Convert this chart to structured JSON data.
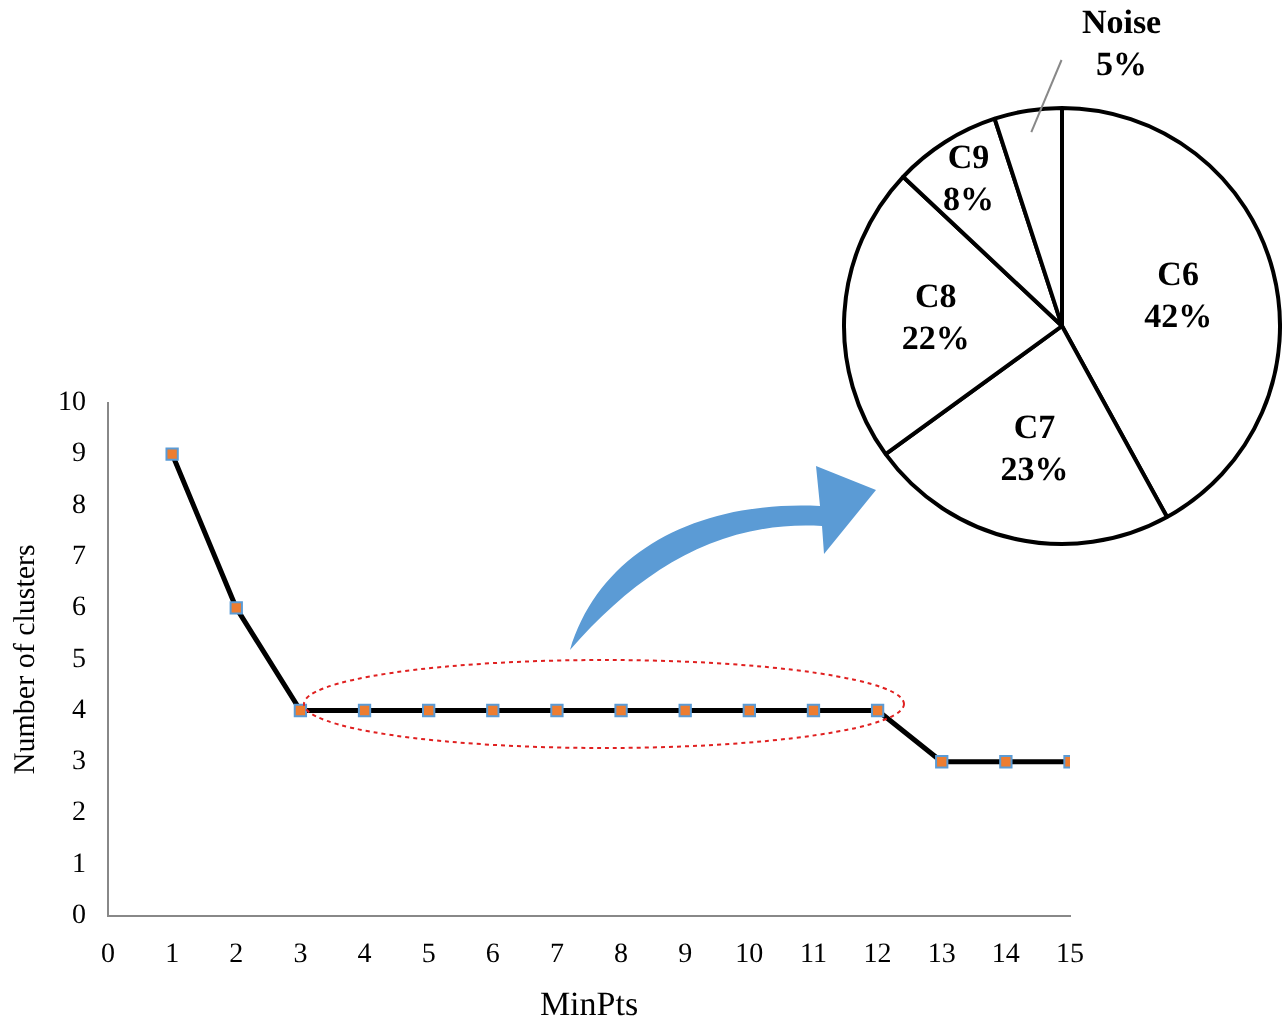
{
  "chart_data": [
    {
      "type": "line",
      "xlabel": "MinPts",
      "ylabel": "Number of clusters",
      "x": [
        1,
        2,
        3,
        4,
        5,
        6,
        7,
        8,
        9,
        10,
        11,
        12,
        13,
        14,
        15
      ],
      "series": [
        {
          "color": "#000000",
          "values": [
            9,
            6,
            4,
            4,
            4,
            4,
            4,
            4,
            4,
            4,
            4,
            4,
            3,
            3,
            3
          ]
        }
      ],
      "xlim": [
        0,
        15
      ],
      "xticks": [
        0,
        1,
        2,
        3,
        4,
        5,
        6,
        7,
        8,
        9,
        10,
        11,
        12,
        13,
        14,
        15
      ],
      "ylim": [
        0,
        10
      ],
      "yticks": [
        0,
        1,
        2,
        3,
        4,
        5,
        6,
        7,
        8,
        9,
        10
      ],
      "grid": false,
      "legend": false,
      "marker": "square",
      "line_style": "solid"
    },
    {
      "type": "pie",
      "categories": [
        "C6",
        "C7",
        "C8",
        "C9",
        "Noise"
      ],
      "values": [
        42,
        23,
        22,
        8,
        5
      ],
      "colors": [
        "#ffffff",
        "#ffffff",
        "#ffffff",
        "#ffffff",
        "#ffffff"
      ],
      "value_labels": [
        "42%",
        "23%",
        "22%",
        "8%",
        "5%"
      ],
      "legend": false
    }
  ]
}
